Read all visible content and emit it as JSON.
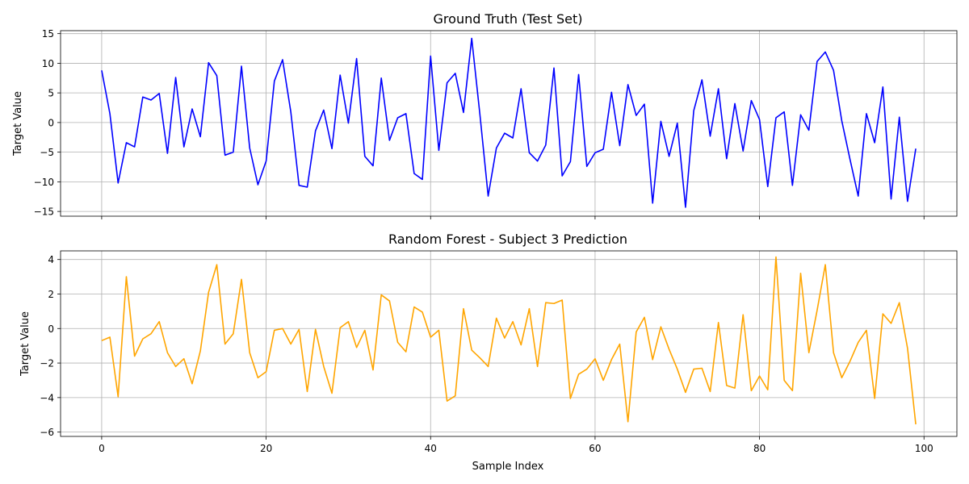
{
  "figure": {
    "xlabel": "Sample Index"
  },
  "chart_data": [
    {
      "type": "line",
      "title": "Ground Truth (Test Set)",
      "xlabel": "",
      "ylabel": "Target Value",
      "xlim": [
        -5,
        104
      ],
      "ylim": [
        -15.8,
        15.5
      ],
      "xticks": [
        0,
        20,
        40,
        60,
        80,
        100
      ],
      "xtick_labels": [],
      "yticks": [
        -15,
        -10,
        -5,
        0,
        5,
        10,
        15
      ],
      "ytick_labels": [
        "−15",
        "−10",
        "−5",
        "0",
        "5",
        "10",
        "15"
      ],
      "grid": true,
      "series": [
        {
          "color": "#0000ff",
          "x": [
            0,
            1,
            2,
            3,
            4,
            5,
            6,
            7,
            8,
            9,
            10,
            11,
            12,
            13,
            14,
            15,
            16,
            17,
            18,
            19,
            20,
            21,
            22,
            23,
            24,
            25,
            26,
            27,
            28,
            29,
            30,
            31,
            32,
            33,
            34,
            35,
            36,
            37,
            38,
            39,
            40,
            41,
            42,
            43,
            44,
            45,
            46,
            47,
            48,
            49,
            50,
            51,
            52,
            53,
            54,
            55,
            56,
            57,
            58,
            59,
            60,
            61,
            62,
            63,
            64,
            65,
            66,
            67,
            68,
            69,
            70,
            71,
            72,
            73,
            74,
            75,
            76,
            77,
            78,
            79,
            80,
            81,
            82,
            83,
            84,
            85,
            86,
            87,
            88,
            89,
            90,
            91,
            92,
            93,
            94,
            95,
            96,
            97,
            98,
            99
          ],
          "y": [
            8.8,
            1.5,
            -10.2,
            -3.4,
            -4.1,
            4.3,
            3.8,
            4.9,
            -5.2,
            7.6,
            -4.1,
            2.3,
            -2.4,
            10.1,
            7.9,
            -5.5,
            -5.0,
            9.5,
            -4.3,
            -10.5,
            -6.5,
            7.0,
            10.6,
            1.8,
            -10.6,
            -10.9,
            -1.4,
            2.1,
            -4.4,
            8.0,
            -0.1,
            10.8,
            -5.7,
            -7.3,
            7.5,
            -3.0,
            0.8,
            1.5,
            -8.6,
            -9.6,
            11.2,
            -4.7,
            6.7,
            8.3,
            1.7,
            14.2,
            1.3,
            -12.4,
            -4.3,
            -1.8,
            -2.6,
            5.7,
            -5.1,
            -6.5,
            -3.8,
            9.2,
            -9.0,
            -6.6,
            8.1,
            -7.4,
            -5.1,
            -4.5,
            5.1,
            -3.9,
            6.4,
            1.2,
            3.1,
            -13.6,
            0.2,
            -5.7,
            -0.1,
            -14.3,
            2.0,
            7.2,
            -2.3,
            5.7,
            -6.1,
            3.2,
            -4.8,
            3.7,
            0.5,
            -10.8,
            0.8,
            1.8,
            -10.6,
            1.3,
            -1.3,
            10.3,
            11.9,
            8.8,
            0.3,
            -6.2,
            -12.4,
            1.5,
            -3.4,
            6.0,
            -12.9,
            0.9,
            -13.3,
            -4.4
          ]
        }
      ]
    },
    {
      "type": "line",
      "title": "Random Forest - Subject 3 Prediction",
      "xlabel": "Sample Index",
      "ylabel": "Target Value",
      "xlim": [
        -5,
        104
      ],
      "ylim": [
        -6.25,
        4.5
      ],
      "xticks": [
        0,
        20,
        40,
        60,
        80,
        100
      ],
      "xtick_labels": [
        "0",
        "20",
        "40",
        "60",
        "80",
        "100"
      ],
      "yticks": [
        -6,
        -4,
        -2,
        0,
        2,
        4
      ],
      "ytick_labels": [
        "−6",
        "−4",
        "−2",
        "0",
        "2",
        "4"
      ],
      "grid": true,
      "series": [
        {
          "color": "#ffa500",
          "x": [
            0,
            1,
            2,
            3,
            4,
            5,
            6,
            7,
            8,
            9,
            10,
            11,
            12,
            13,
            14,
            15,
            16,
            17,
            18,
            19,
            20,
            21,
            22,
            23,
            24,
            25,
            26,
            27,
            28,
            29,
            30,
            31,
            32,
            33,
            34,
            35,
            36,
            37,
            38,
            39,
            40,
            41,
            42,
            43,
            44,
            45,
            46,
            47,
            48,
            49,
            50,
            51,
            52,
            53,
            54,
            55,
            56,
            57,
            58,
            59,
            60,
            61,
            62,
            63,
            64,
            65,
            66,
            67,
            68,
            69,
            70,
            71,
            72,
            73,
            74,
            75,
            76,
            77,
            78,
            79,
            80,
            81,
            82,
            83,
            84,
            85,
            86,
            87,
            88,
            89,
            90,
            91,
            92,
            93,
            94,
            95,
            96,
            97,
            98,
            99
          ],
          "y": [
            -0.7,
            -0.5,
            -3.95,
            3.0,
            -1.6,
            -0.6,
            -0.3,
            0.4,
            -1.4,
            -2.2,
            -1.75,
            -3.2,
            -1.3,
            2.1,
            3.7,
            -0.9,
            -0.3,
            2.85,
            -1.4,
            -2.85,
            -2.5,
            -0.1,
            0.0,
            -0.9,
            -0.05,
            -3.65,
            -0.05,
            -2.2,
            -3.75,
            0.05,
            0.4,
            -1.1,
            -0.1,
            -2.4,
            1.95,
            1.6,
            -0.8,
            -1.35,
            1.25,
            0.95,
            -0.5,
            -0.1,
            -4.2,
            -3.9,
            1.15,
            -1.25,
            -1.7,
            -2.2,
            0.6,
            -0.55,
            0.4,
            -0.95,
            1.15,
            -2.2,
            1.5,
            1.45,
            1.65,
            -4.05,
            -2.65,
            -2.35,
            -1.75,
            -3.0,
            -1.8,
            -0.9,
            -5.4,
            -0.2,
            0.65,
            -1.8,
            0.1,
            -1.2,
            -2.35,
            -3.7,
            -2.35,
            -2.3,
            -3.65,
            0.35,
            -3.3,
            -3.45,
            0.8,
            -3.6,
            -2.75,
            -3.55,
            4.15,
            -3.0,
            -3.6,
            3.2,
            -1.4,
            1.05,
            3.7,
            -1.4,
            -2.85,
            -1.9,
            -0.8,
            -0.1,
            -4.05,
            0.85,
            0.3,
            1.5,
            -1.15,
            -5.55
          ]
        }
      ]
    }
  ]
}
